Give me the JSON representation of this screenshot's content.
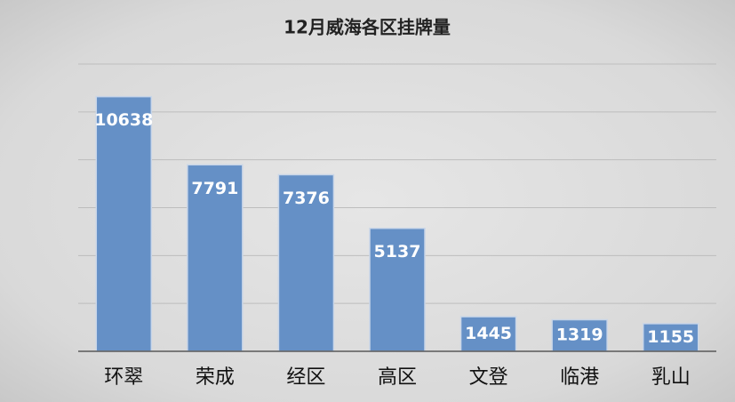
{
  "chart_data": {
    "type": "bar",
    "title": "12月威海各区挂牌量",
    "categories": [
      "环翠",
      "荣成",
      "经区",
      "高区",
      "文登",
      "临港",
      "乳山"
    ],
    "values": [
      10638,
      7791,
      7376,
      5137,
      1445,
      1319,
      1155
    ],
    "color": "#6590c6",
    "ylim": [
      0,
      12000
    ],
    "yticks": [
      0,
      2000,
      4000,
      6000,
      8000,
      10000,
      12000
    ],
    "grid": true
  }
}
